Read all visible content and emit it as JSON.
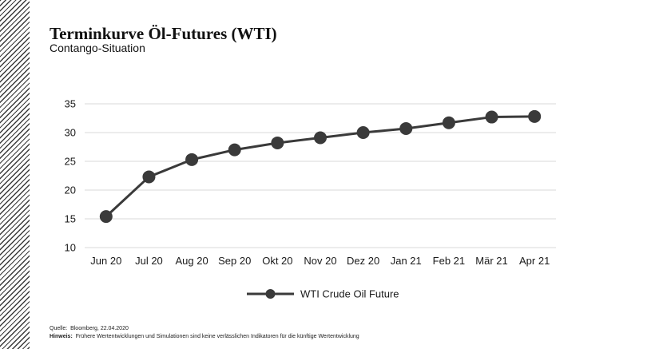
{
  "header": {
    "title": "Terminkurve Öl-Futures (WTI)",
    "subtitle": "Contango-Situation"
  },
  "footer": {
    "source_label": "Quelle:",
    "source_text": "Bloomberg,   22.04.2020",
    "note_label": "Hinweis:",
    "note_text": "Frühere  Wertentwicklungen  und  Simulationen  sind  keine  verlässlichen  Indikatoren  für  die  künftige  Wertentwicklung"
  },
  "colors": {
    "series": "#3a3a3a",
    "grid": "#d9d9d9",
    "text": "#1a1a1a"
  },
  "chart_data": {
    "type": "line",
    "title": "Terminkurve Öl-Futures (WTI)",
    "subtitle": "Contango-Situation",
    "xlabel": "",
    "ylabel": "",
    "categories": [
      "Jun 20",
      "Jul 20",
      "Aug 20",
      "Sep 20",
      "Okt 20",
      "Nov 20",
      "Dez 20",
      "Jan 21",
      "Feb 21",
      "Mär 21",
      "Apr 21"
    ],
    "series": [
      {
        "name": "WTI Crude Oil Future",
        "values": [
          15.4,
          22.3,
          25.3,
          27.0,
          28.2,
          29.1,
          30.0,
          30.7,
          31.7,
          32.7,
          32.8
        ]
      }
    ],
    "ylim": [
      10,
      35
    ],
    "yticks": [
      10,
      15,
      20,
      25,
      30,
      35
    ],
    "grid": true,
    "legend_position": "bottom-center"
  }
}
